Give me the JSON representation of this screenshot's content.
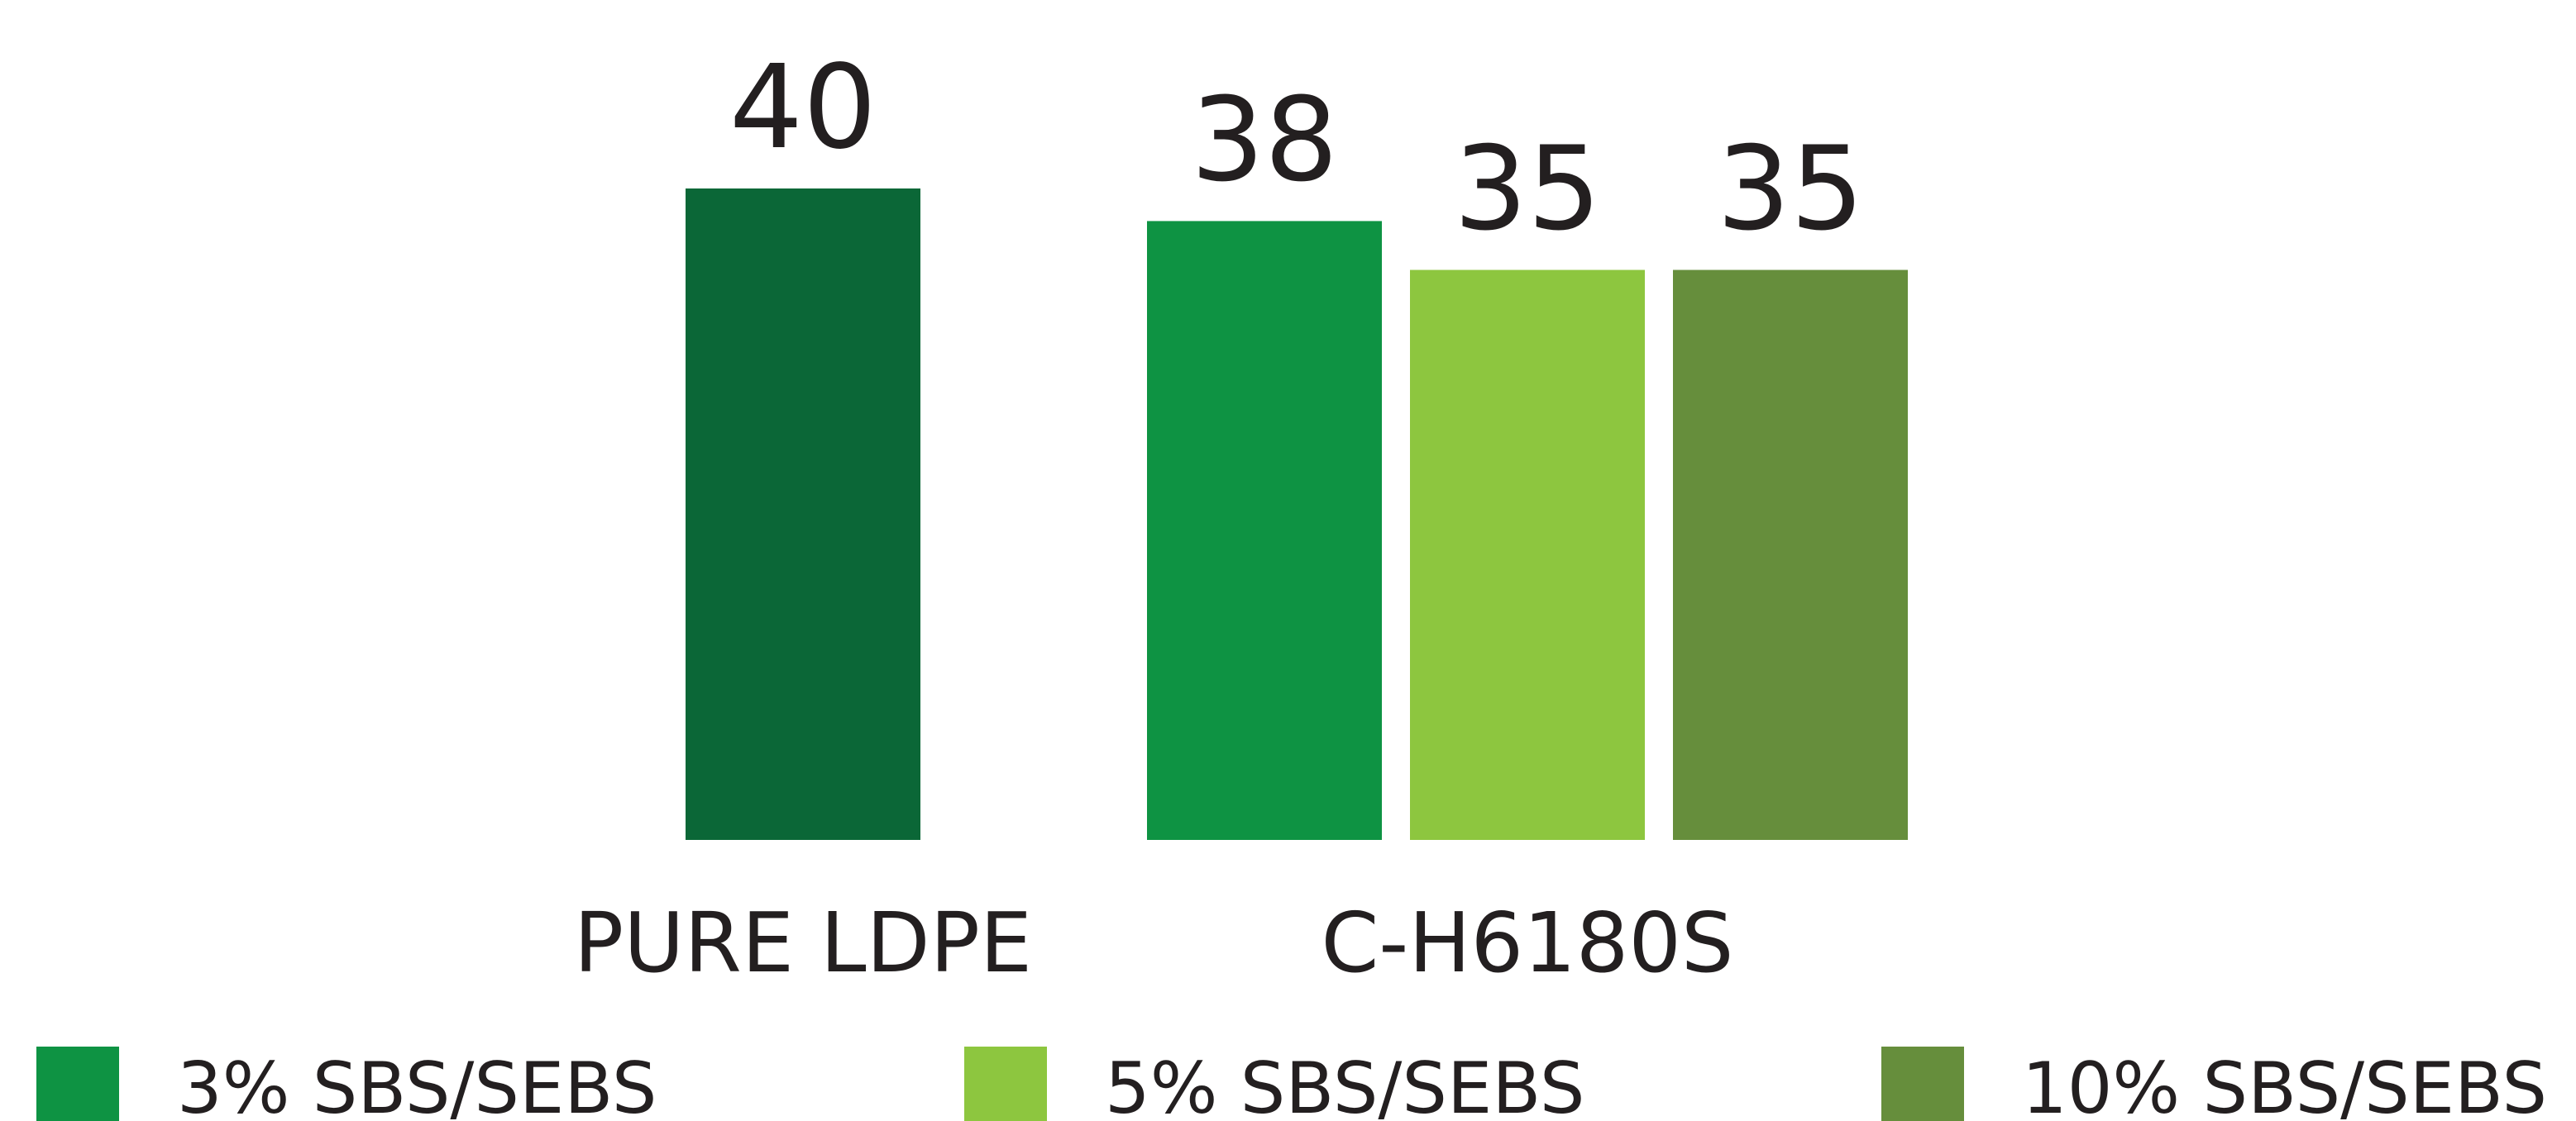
{
  "chart_data": {
    "type": "bar",
    "categories": [
      "PURE LDPE",
      "C-H6180S"
    ],
    "series": [
      {
        "color": "#0b6737",
        "values": [
          40,
          null
        ]
      },
      {
        "name": "3% SBS/SEBS",
        "color": "#0e9343",
        "values": [
          null,
          38
        ]
      },
      {
        "name": "5% SBS/SEBS",
        "color": "#8dc63f",
        "values": [
          null,
          35
        ]
      },
      {
        "name": "10% SBS/SEBS",
        "color": "#668e3c",
        "values": [
          null,
          35
        ]
      }
    ]
  }
}
